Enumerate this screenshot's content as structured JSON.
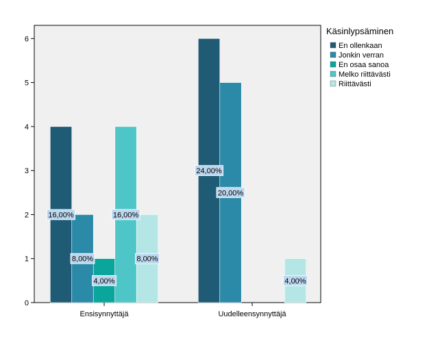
{
  "chart_data": {
    "type": "bar",
    "categories": [
      "Ensisynnyttäjä",
      "Uudelleensynnyttäjä"
    ],
    "legend_title": "Käsinlypsäminen",
    "legend_position": "right",
    "ylim": [
      0,
      6.3
    ],
    "yticks": [
      "0",
      "1",
      "2",
      "3",
      "4",
      "5",
      "6"
    ],
    "grid": false,
    "series": [
      {
        "name": "En ollenkaan",
        "color": "#1f5b74",
        "values": [
          4,
          6
        ],
        "labels": [
          "16,00%",
          "24,00%"
        ]
      },
      {
        "name": "Jonkin verran",
        "color": "#2b8aa8",
        "values": [
          2,
          5
        ],
        "labels": [
          "8,00%",
          "20,00%"
        ]
      },
      {
        "name": "En osaa sanoa",
        "color": "#0aa59b",
        "values": [
          1,
          0
        ],
        "labels": [
          "4,00%",
          ""
        ]
      },
      {
        "name": "Melko riittävästi",
        "color": "#4ec6c8",
        "values": [
          4,
          0
        ],
        "labels": [
          "16,00%",
          ""
        ]
      },
      {
        "name": "Riittävästi",
        "color": "#b5e6e6",
        "values": [
          2,
          1
        ],
        "labels": [
          "8,00%",
          "4,00%"
        ]
      }
    ]
  }
}
